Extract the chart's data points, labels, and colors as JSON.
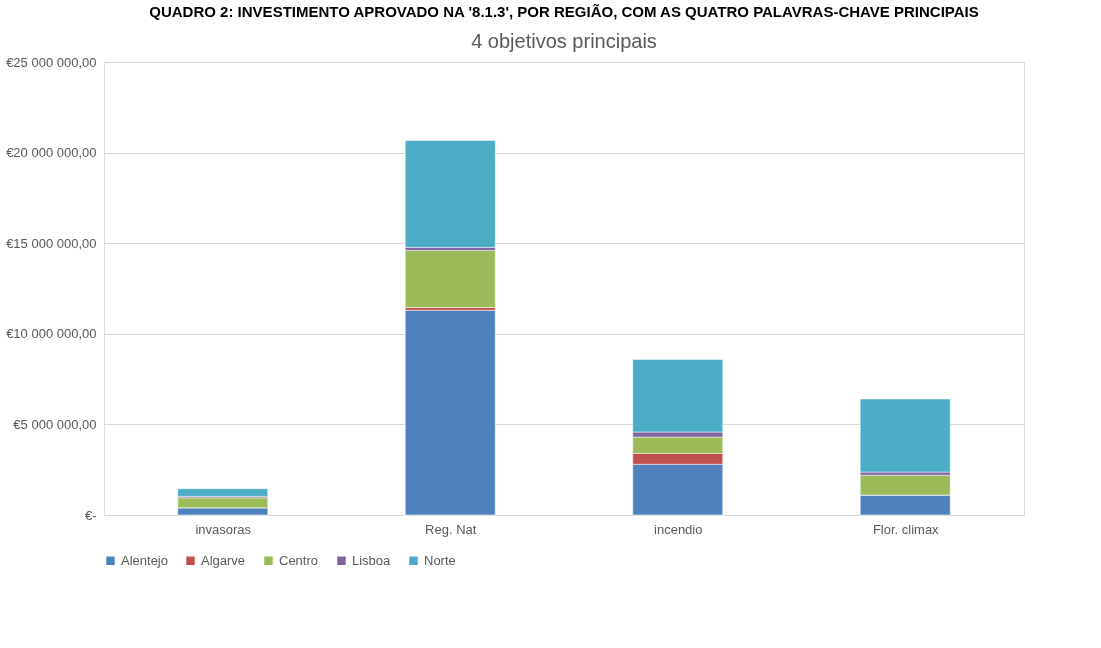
{
  "chart_data": {
    "type": "bar",
    "stacked": true,
    "title": "4 objetivos principais",
    "annotations": [
      "QUADRO 2: INVESTIMENTO APROVADO NA '8.1.3', POR REGIÃO, COM AS QUATRO PALAVRAS-CHAVE PRINCIPAIS"
    ],
    "categories": [
      "invasoras",
      "Reg. Nat",
      "incendio",
      "Flor. climax"
    ],
    "series": [
      {
        "name": "Alentejo",
        "color": "#4f81bd",
        "values": [
          400000,
          11300000,
          2800000,
          1100000
        ]
      },
      {
        "name": "Algarve",
        "color": "#c0504d",
        "values": [
          0,
          150000,
          600000,
          0
        ]
      },
      {
        "name": "Centro",
        "color": "#9bbb59",
        "values": [
          550000,
          3150000,
          900000,
          1100000
        ]
      },
      {
        "name": "Lisboa",
        "color": "#8064a2",
        "values": [
          80000,
          170000,
          280000,
          170000
        ]
      },
      {
        "name": "Norte",
        "color": "#4bacc6",
        "values": [
          420000,
          5900000,
          4000000,
          4030000
        ]
      }
    ],
    "ylim": [
      0,
      25000000
    ],
    "yticks": [
      {
        "value": 0,
        "label": "€-"
      },
      {
        "value": 5000000,
        "label": "€5 000 000,00"
      },
      {
        "value": 10000000,
        "label": "€10 000 000,00"
      },
      {
        "value": 15000000,
        "label": "€15 000 000,00"
      },
      {
        "value": 20000000,
        "label": "€20 000 000,00"
      },
      {
        "value": 25000000,
        "label": "€25 000 000,00"
      }
    ],
    "grid": "y",
    "legend": "bottom"
  }
}
